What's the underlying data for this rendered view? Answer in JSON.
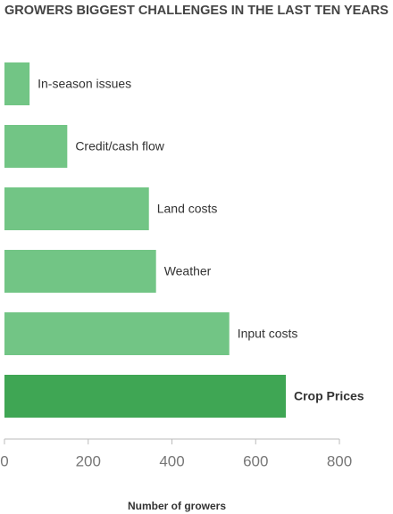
{
  "chart_data": {
    "type": "bar",
    "orientation": "horizontal",
    "title": "GROWERS BIGGEST CHALLENGES IN THE LAST TEN YEARS",
    "categories": [
      "In-season issues",
      "Credit/cash flow",
      "Land costs",
      "Weather",
      "Input costs",
      "Crop Prices"
    ],
    "values": [
      60,
      150,
      345,
      362,
      537,
      672
    ],
    "colors": [
      "#72c585",
      "#72c585",
      "#72c585",
      "#72c585",
      "#72c585",
      "#3fa654"
    ],
    "xlabel": "Number of growers",
    "xlim": [
      0,
      800
    ],
    "xticks": [
      0,
      200,
      400,
      600,
      800
    ],
    "grid": false
  }
}
